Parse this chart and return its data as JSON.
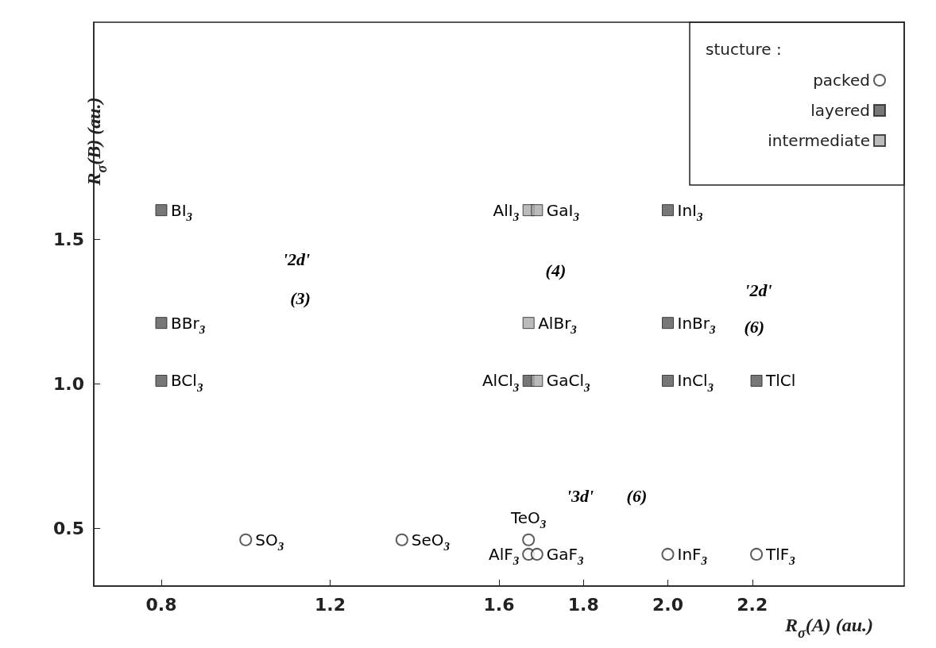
{
  "chart_data": {
    "type": "scatter",
    "xlabel": "R$_{σ}$(A) (au.)",
    "ylabel": "R$_{σ}$(B) (au.)",
    "legend_title": "stucture :",
    "legend": "top right",
    "grid": false,
    "xlim": [
      0.64,
      2.56
    ],
    "xticks": [
      0.8,
      1.2,
      1.6,
      1.8,
      {
        "value": 2,
        "label": "2.0"
      },
      2.2
    ],
    "ylim": [
      0.3,
      2.25
    ],
    "yticks": [
      0.5,
      {
        "value": 1,
        "label": "1.0"
      },
      1.5
    ],
    "series": [
      {
        "name": "packed",
        "color": "#333333",
        "marker": "circle",
        "x": [
          1.0,
          1.37,
          1.67,
          1.67,
          1.69,
          2.0,
          2.21
        ],
        "values": [
          0.46,
          0.46,
          0.46,
          0.41,
          0.41,
          0.41,
          0.41
        ]
      },
      {
        "name": "layered",
        "color": "#555555",
        "marker": "square",
        "x": [
          0.8,
          0.8,
          0.8,
          1.67,
          2.0,
          2.0,
          2.0,
          2.21
        ],
        "values": [
          1.6,
          1.21,
          1.01,
          1.01,
          1.6,
          1.21,
          1.01,
          1.01
        ]
      },
      {
        "name": "intermediate",
        "color": "#aaaaaa",
        "marker": "square",
        "x": [
          1.67,
          1.69,
          1.67,
          1.69
        ],
        "values": [
          1.6,
          1.6,
          1.21,
          1.01
        ]
      }
    ],
    "annotations": [
      {
        "text": "SO$_{3}$",
        "x": 1.0,
        "y": 0.46
      },
      {
        "text": "SeO$_{3}$",
        "x": 1.37,
        "y": 0.46
      },
      {
        "text": "TeO$_{3}$",
        "x": 1.67,
        "y": 0.46
      },
      {
        "text": "AlF$_{3}$",
        "x": 1.67,
        "y": 0.41
      },
      {
        "text": "GaF$_{3}$",
        "x": 1.69,
        "y": 0.41
      },
      {
        "text": "InF$_{3}$",
        "x": 2.0,
        "y": 0.41
      },
      {
        "text": "TlF$_{3}$",
        "x": 2.21,
        "y": 0.41
      },
      {
        "text": "BI$_{3}$",
        "x": 0.8,
        "y": 1.6
      },
      {
        "text": "BBr$_{3}$",
        "x": 0.8,
        "y": 1.21
      },
      {
        "text": "BCl$_{3}$",
        "x": 0.8,
        "y": 1.01
      },
      {
        "text": "AlCl$_{3}$",
        "x": 1.67,
        "y": 1.01
      },
      {
        "text": "InI$_{3}$",
        "x": 2.0,
        "y": 1.6
      },
      {
        "text": "InBr$_{3}$",
        "x": 2.0,
        "y": 1.21
      },
      {
        "text": "InCl$_{3}$",
        "x": 2.0,
        "y": 1.01
      },
      {
        "text": "TlCl",
        "x": 2.21,
        "y": 1.01
      },
      {
        "text": "AlI$_{3}$",
        "x": 1.67,
        "y": 1.6
      },
      {
        "text": "GaI$_{3}$",
        "x": 1.69,
        "y": 1.6
      },
      {
        "text": "AlBr$_{3}$",
        "x": 1.67,
        "y": 1.21
      },
      {
        "text": "GaCl$_{3}$",
        "x": 1.69,
        "y": 1.01
      },
      "'2d'",
      "(3)",
      "(4)",
      "'2d'",
      "(6)",
      "'3d'",
      "(6)"
    ]
  }
}
